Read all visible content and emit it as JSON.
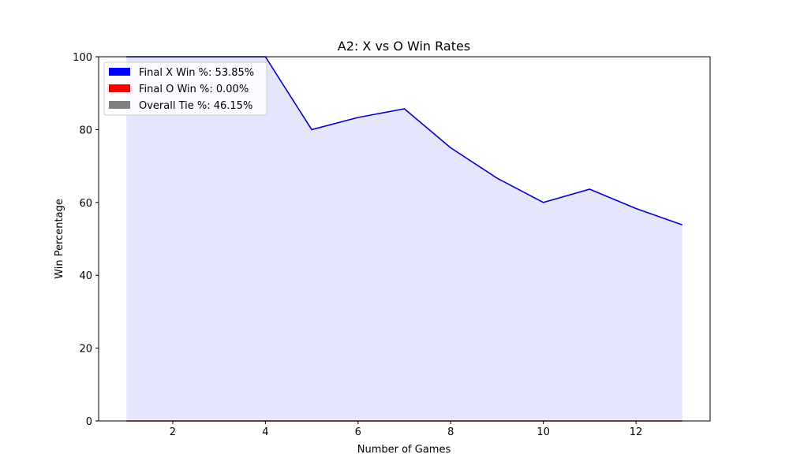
{
  "chart_data": {
    "type": "area",
    "title": "A2: X vs O Win Rates",
    "xlabel": "Number of Games",
    "ylabel": "Win Percentage",
    "xlim": [
      0.4,
      13.6
    ],
    "ylim": [
      0,
      100
    ],
    "xticks": [
      2,
      4,
      6,
      8,
      10,
      12
    ],
    "yticks": [
      0,
      20,
      40,
      60,
      80,
      100
    ],
    "x": [
      1,
      2,
      3,
      4,
      5,
      6,
      7,
      8,
      9,
      10,
      11,
      12,
      13
    ],
    "series": [
      {
        "key": "x",
        "values": [
          100,
          100,
          100,
          100,
          80,
          83.33,
          85.71,
          75,
          66.67,
          60,
          63.64,
          58.33,
          53.85
        ],
        "line_color": "#0000cc",
        "fill_color": "#e5e5fb"
      },
      {
        "key": "o",
        "values": [
          0,
          0,
          0,
          0,
          0,
          0,
          0,
          0,
          0,
          0,
          0,
          0,
          0
        ],
        "line_color": "#cc0000",
        "fill_color": "#ffcccc"
      }
    ],
    "legend": {
      "position": "top-left",
      "entries": [
        {
          "label": "Final X Win %: 53.85%",
          "color": "#0000ff"
        },
        {
          "label": "Final O Win %: 0.00%",
          "color": "#ff0000"
        },
        {
          "label": "Overall Tie %: 46.15%",
          "color": "#808080"
        }
      ]
    }
  }
}
